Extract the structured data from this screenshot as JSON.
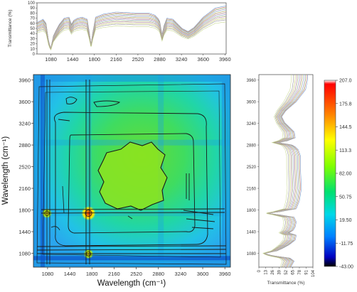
{
  "chart_data": [
    {
      "id": "top-spectra",
      "type": "line",
      "xlabel": "",
      "ylabel": "Transmittance (%)",
      "xlim": [
        850,
        3980
      ],
      "ylim": [
        0,
        100
      ],
      "x_ticks": [
        "1080",
        "1440",
        "1800",
        "2160",
        "2520",
        "2880",
        "3240",
        "3600",
        "3960"
      ],
      "y_ticks": [
        "0",
        "10",
        "20",
        "30",
        "40",
        "50",
        "60",
        "70",
        "80",
        "90",
        "100"
      ],
      "n_series": 14,
      "spectrum_profile": {
        "x": [
          860,
          950,
          1000,
          1040,
          1060,
          1080,
          1120,
          1160,
          1220,
          1300,
          1380,
          1420,
          1460,
          1520,
          1600,
          1680,
          1720,
          1745,
          1770,
          1820,
          1950,
          2160,
          2500,
          2700,
          2800,
          2850,
          2880,
          2920,
          2950,
          3000,
          3100,
          3250,
          3350,
          3450,
          3600,
          3800,
          3980
        ],
        "y": [
          62,
          68,
          60,
          28,
          18,
          12,
          35,
          45,
          58,
          70,
          72,
          58,
          66,
          70,
          72,
          68,
          40,
          18,
          40,
          72,
          78,
          82,
          80,
          80,
          76,
          70,
          64,
          38,
          55,
          70,
          68,
          50,
          44,
          52,
          72,
          90,
          94
        ]
      },
      "series_offsets": [
        0,
        -2,
        -4,
        -6,
        -8,
        -10,
        -12,
        -14,
        -16,
        -18,
        -20,
        -23,
        -26,
        -30
      ],
      "series_colors": [
        "#6a9fd4",
        "#e07b6a",
        "#7fbf7f",
        "#c99ad6",
        "#8fcfd0",
        "#e0b36a",
        "#a0a0a0",
        "#d4a0b0",
        "#9ab0e0",
        "#bcd48f",
        "#b07fa0",
        "#c0c060",
        "#909090",
        "#c8d890"
      ]
    },
    {
      "id": "sync-2d-map",
      "type": "heatmap",
      "xlabel": "Wavelength (cm⁻¹)",
      "ylabel": "Wavelength (cm⁻¹)",
      "xlim": [
        850,
        4050
      ],
      "ylim": [
        850,
        4050
      ],
      "x_ticks": [
        "1080",
        "1440",
        "1800",
        "2160",
        "2520",
        "2880",
        "3240",
        "3600",
        "3960"
      ],
      "y_ticks": [
        "1080",
        "1440",
        "1800",
        "2160",
        "2520",
        "2880",
        "3240",
        "3600",
        "3960"
      ],
      "colorbar": {
        "min": -43.0,
        "max": 207.0,
        "ticks": [
          "207.0",
          "175.8",
          "144.5",
          "113.3",
          "82.00",
          "50.75",
          "19.50",
          "-11.75",
          "-43.00"
        ]
      },
      "peaks": [
        {
          "x": 1745,
          "y": 1745,
          "value": 190
        },
        {
          "x": 1745,
          "y": 1070,
          "value": 150
        },
        {
          "x": 1070,
          "y": 1745,
          "value": 150
        }
      ]
    },
    {
      "id": "side-spectra",
      "type": "line",
      "xlabel": "Transmittance (%)",
      "ylabel": "",
      "orientation": "vertical",
      "xlim": [
        0,
        104
      ],
      "ylim": [
        850,
        4050
      ],
      "x_ticks": [
        "0",
        "13",
        "26",
        "39",
        "52",
        "65",
        "78",
        "91",
        "104"
      ],
      "y_ticks": [
        "1080",
        "1440",
        "1800",
        "2160",
        "2520",
        "2880",
        "3240",
        "3600",
        "3960"
      ]
    }
  ]
}
